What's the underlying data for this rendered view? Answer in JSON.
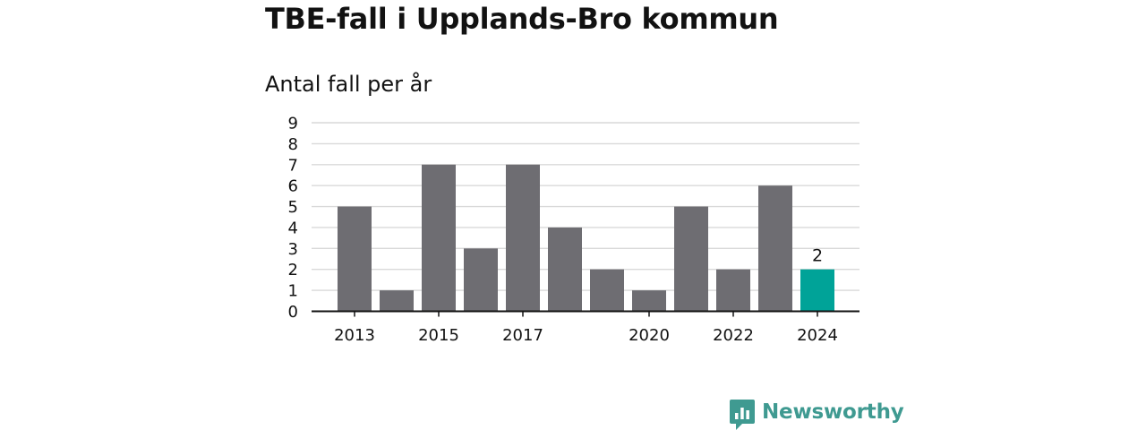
{
  "header": {
    "title": "TBE-fall i Upplands-Bro kommun",
    "subtitle": "Antal fall per år"
  },
  "brand": {
    "name": "Newsworthy",
    "icon": "newsworthy-logo-icon",
    "color": "#3f9a91"
  },
  "chart_data": {
    "type": "bar",
    "categories": [
      "2013",
      "2014",
      "2015",
      "2016",
      "2017",
      "2018",
      "2019",
      "2020",
      "2021",
      "2022",
      "2023",
      "2024"
    ],
    "values": [
      5,
      1,
      7,
      3,
      7,
      4,
      2,
      1,
      5,
      2,
      6,
      2
    ],
    "x_tick_labels": [
      "2013",
      "",
      "2015",
      "",
      "2017",
      "",
      "",
      "2020",
      "",
      "2022",
      "",
      "2024"
    ],
    "y_ticks": [
      0,
      1,
      2,
      3,
      4,
      5,
      6,
      7,
      8,
      9
    ],
    "ylim": [
      0,
      9
    ],
    "grid": true,
    "highlight": {
      "category": "2024",
      "label": "2"
    },
    "colors": {
      "bar": "#6e6d72",
      "highlight": "#00a398",
      "grid": "#d9d9d9",
      "axis": "#121212"
    }
  }
}
